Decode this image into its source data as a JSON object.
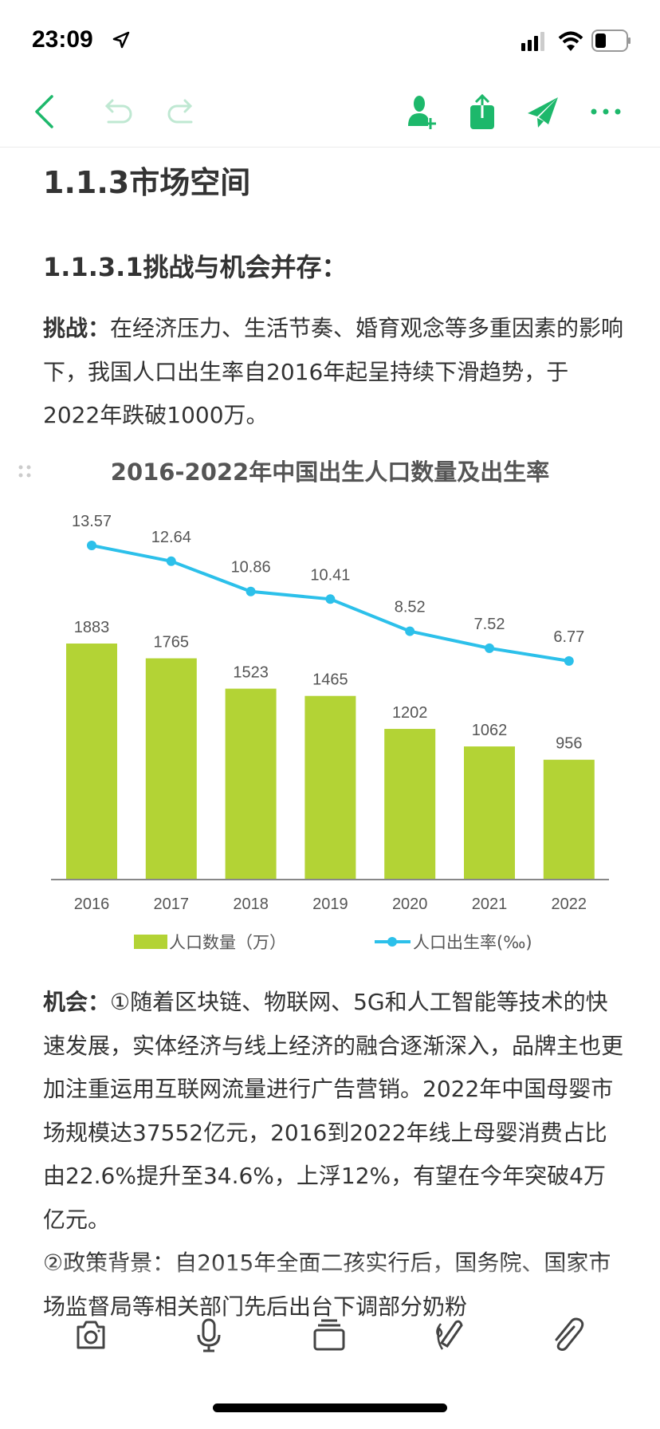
{
  "status_bar": {
    "time": "23:09",
    "icons": [
      "location-arrow-icon",
      "signal-icon",
      "wifi-icon",
      "battery-icon"
    ]
  },
  "toolbar": {
    "accent": "#1db86b",
    "left_icons": [
      "back-chevron-icon",
      "undo-icon",
      "redo-icon"
    ],
    "right_icons": [
      "add-collaborator-icon",
      "share-export-icon",
      "send-icon",
      "more-icon"
    ]
  },
  "note": {
    "heading1": "1.1.3市场空间",
    "heading2": "1.1.3.1挑战与机会并存：",
    "challenge_label": "挑战：",
    "challenge_text": "在经济压力、生活节奏、婚育观念等多重因素的影响下，我国人口出生率自2016年起呈持续下滑趋势，于2022年跌破1000万。",
    "opportunity_label": "机会：",
    "opportunity_text": "①随着区块链、物联网、5G和人工智能等技术的快速发展，实体经济与线上经济的融合逐渐深入，品牌主也更加注重运用互联网流量进行广告营销。2022年中国母婴市场规模达37552亿元，2016到2022年线上母婴消费占比由22.6%提升至34.6%，上浮12%，有望在今年突破4万亿元。",
    "policy_text": "②政策背景：自2015年全面二孩实行后，国务院、国家市场监督局等相关部门先后出台下调部分奶粉"
  },
  "chart_data": {
    "type": "bar+line",
    "title": "2016-2022年中国出生人口数量及出生率",
    "categories": [
      "2016",
      "2017",
      "2018",
      "2019",
      "2020",
      "2021",
      "2022"
    ],
    "series": [
      {
        "name": "人口数量（万）",
        "type": "bar",
        "color": "#b3d335",
        "values": [
          1883,
          1765,
          1523,
          1465,
          1202,
          1062,
          956
        ]
      },
      {
        "name": "人口出生率(‰)",
        "type": "line",
        "color": "#2cc0ea",
        "values": [
          13.57,
          12.64,
          10.86,
          10.41,
          8.52,
          7.52,
          6.77
        ]
      }
    ],
    "legend_position": "bottom",
    "grid": false
  },
  "bottom_toolbar": {
    "icons": [
      "camera-icon",
      "microphone-icon",
      "card-stack-icon",
      "handwriting-pen-icon",
      "paperclip-icon"
    ]
  }
}
